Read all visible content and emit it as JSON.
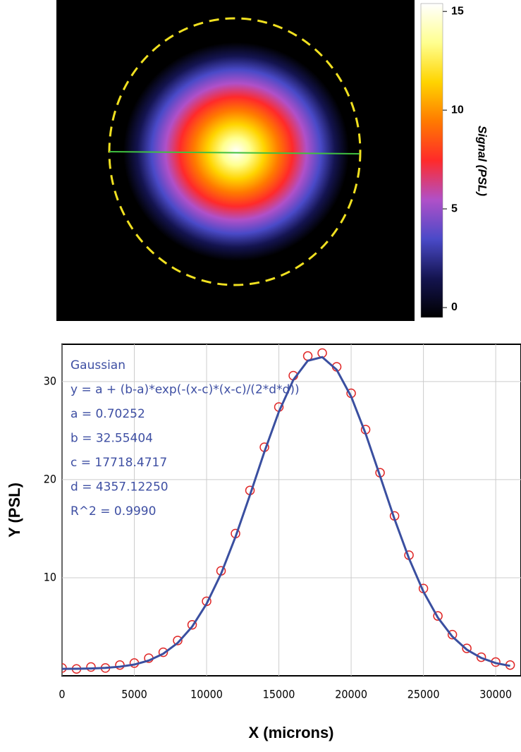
{
  "chart_data": [
    {
      "type": "image",
      "colormap": [
        "#000000",
        "#141450",
        "#4a4ac8",
        "#b050c8",
        "#ff2a2a",
        "#ff7a00",
        "#ffd400",
        "#ffff90",
        "#ffffff"
      ],
      "circle_color": "#f0e020",
      "line_color": "#40c040",
      "colorbar_label": "Signal (PSL)",
      "clim": [
        -0.5,
        15.4
      ],
      "cticks": [
        0,
        5,
        10,
        15
      ]
    },
    {
      "type": "scatter",
      "annotations": [
        "Gaussian",
        "y = a + (b-a)*exp(-(x-c)*(x-c)/(2*d*d))",
        "a = 0.70252",
        "b = 32.55404",
        "c = 17718.4717",
        "d = 4357.12250",
        "R^2 = 0.9990"
      ],
      "xlabel": "X (microns)",
      "ylabel": "Y (PSL)",
      "xlim": [
        0,
        31750
      ],
      "ylim": [
        0,
        33.8
      ],
      "xticks": [
        0,
        5000,
        10000,
        15000,
        20000,
        25000,
        30000
      ],
      "yticks": [
        10,
        20,
        30
      ],
      "grid": true,
      "series": [
        {
          "color": "#e02828",
          "x": [
            0,
            1000,
            2000,
            3000,
            4000,
            5000,
            6000,
            7000,
            8000,
            9000,
            10000,
            11000,
            12000,
            13000,
            14000,
            15000,
            16000,
            17000,
            18000,
            19000,
            20000,
            21000,
            22000,
            23000,
            24000,
            25000,
            26000,
            27000,
            28000,
            29000,
            30000,
            31000
          ],
          "values": [
            0.8,
            0.7,
            0.9,
            0.8,
            1.1,
            1.3,
            1.8,
            2.4,
            3.6,
            5.2,
            7.6,
            10.7,
            14.5,
            18.9,
            23.3,
            27.4,
            30.6,
            32.6,
            32.9,
            31.5,
            28.8,
            25.1,
            20.7,
            16.3,
            12.3,
            8.9,
            6.1,
            4.2,
            2.8,
            1.9,
            1.4,
            1.1
          ]
        },
        {
          "color": "#3a4fa0",
          "line": true,
          "x": [
            0,
            1000,
            2000,
            3000,
            4000,
            5000,
            6000,
            7000,
            8000,
            9000,
            10000,
            11000,
            12000,
            13000,
            14000,
            15000,
            16000,
            17000,
            18000,
            19000,
            20000,
            21000,
            22000,
            23000,
            24000,
            25000,
            26000,
            27000,
            28000,
            29000,
            30000,
            31000
          ],
          "values": [
            0.71,
            0.72,
            0.75,
            0.81,
            0.93,
            1.15,
            1.56,
            2.25,
            3.35,
            5.01,
            7.34,
            10.4,
            14.17,
            18.43,
            22.84,
            26.92,
            30.17,
            32.12,
            32.49,
            31.2,
            28.47,
            24.69,
            20.36,
            15.98,
            11.97,
            8.58,
            5.93,
            4.0,
            2.67,
            1.82,
            1.3,
            1.01
          ]
        }
      ]
    }
  ]
}
